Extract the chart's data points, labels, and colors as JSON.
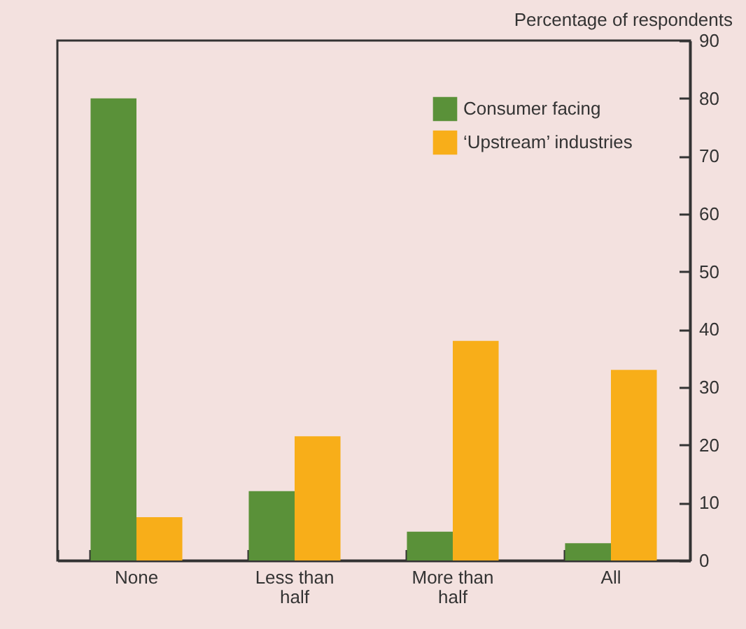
{
  "chart_data": {
    "type": "bar",
    "ylabel": "Percentage of respondents",
    "categories": [
      "None",
      "Less than half",
      "More than half",
      "All"
    ],
    "series": [
      {
        "name": "Consumer facing",
        "color": "#5a9139",
        "values": [
          80,
          12,
          5,
          3
        ]
      },
      {
        "name": "‘Upstream’ industries",
        "color": "#f8ae19",
        "values": [
          7.5,
          21.5,
          38,
          33
        ]
      }
    ],
    "ylim": [
      0,
      90
    ],
    "yticks": [
      0,
      10,
      20,
      30,
      40,
      50,
      60,
      70,
      80,
      90
    ],
    "grid": false,
    "legend": "top right"
  }
}
